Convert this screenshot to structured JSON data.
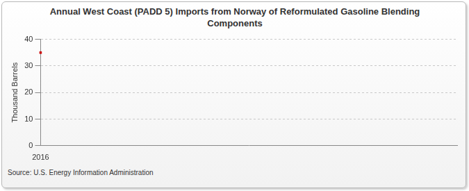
{
  "chart_data": {
    "type": "line",
    "title": "Annual West Coast (PADD 5) Imports from Norway of Reformulated Gasoline Blending Components",
    "ylabel": "Thousand Barrels",
    "source": "Source: U.S. Energy Information Administration",
    "categories": [
      "2016"
    ],
    "values": [
      35
    ],
    "color": "#cc0000",
    "marker": "square",
    "ylim": [
      0,
      40
    ],
    "yticks": [
      0,
      10,
      20,
      30,
      40
    ],
    "grid": true
  }
}
